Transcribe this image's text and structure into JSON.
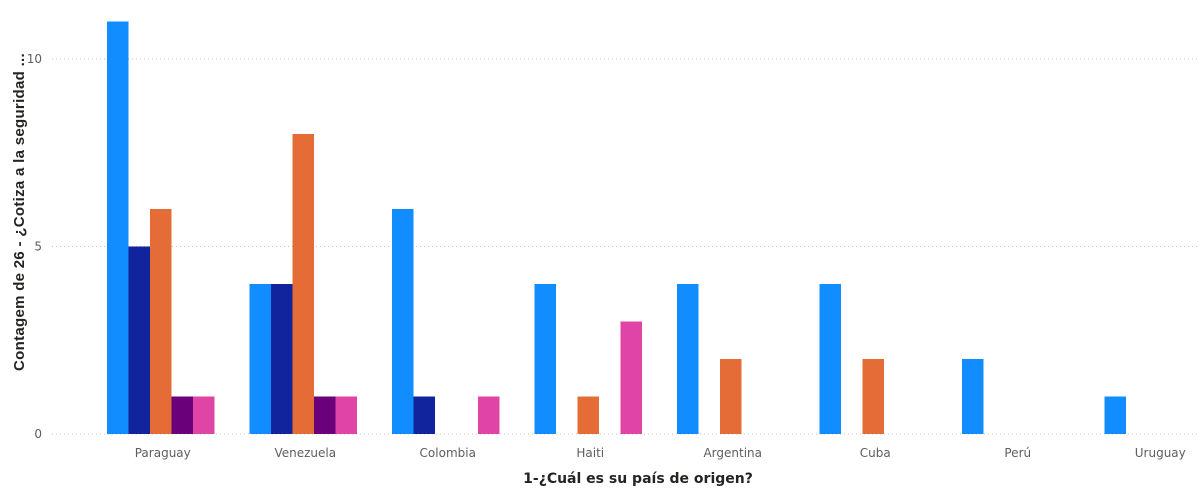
{
  "chart_data": {
    "type": "bar",
    "xlabel": "1-¿Cuál es su país de origen?",
    "ylabel": "Contagem de 26 - ¿Cotiza a la seguridad ...",
    "ylim": [
      0,
      11.2
    ],
    "yticks": [
      0,
      5,
      10
    ],
    "grid": true,
    "categories": [
      "Paraguay",
      "Venezuela",
      "Colombia",
      "Haiti",
      "Argentina",
      "Cuba",
      "Perú",
      "Uruguay"
    ],
    "series": [
      {
        "color": "#118dff",
        "values": [
          11,
          4,
          6,
          4,
          4,
          4,
          2,
          1
        ]
      },
      {
        "color": "#12239e",
        "values": [
          5,
          4,
          1,
          0,
          0,
          0,
          0,
          0
        ]
      },
      {
        "color": "#e66c37",
        "values": [
          6,
          8,
          0,
          1,
          2,
          2,
          0,
          0
        ]
      },
      {
        "color": "#6b007b",
        "values": [
          1,
          1,
          0,
          0,
          0,
          0,
          0,
          0
        ]
      },
      {
        "color": "#e044a7",
        "values": [
          1,
          1,
          1,
          3,
          0,
          0,
          0,
          0
        ]
      }
    ]
  }
}
